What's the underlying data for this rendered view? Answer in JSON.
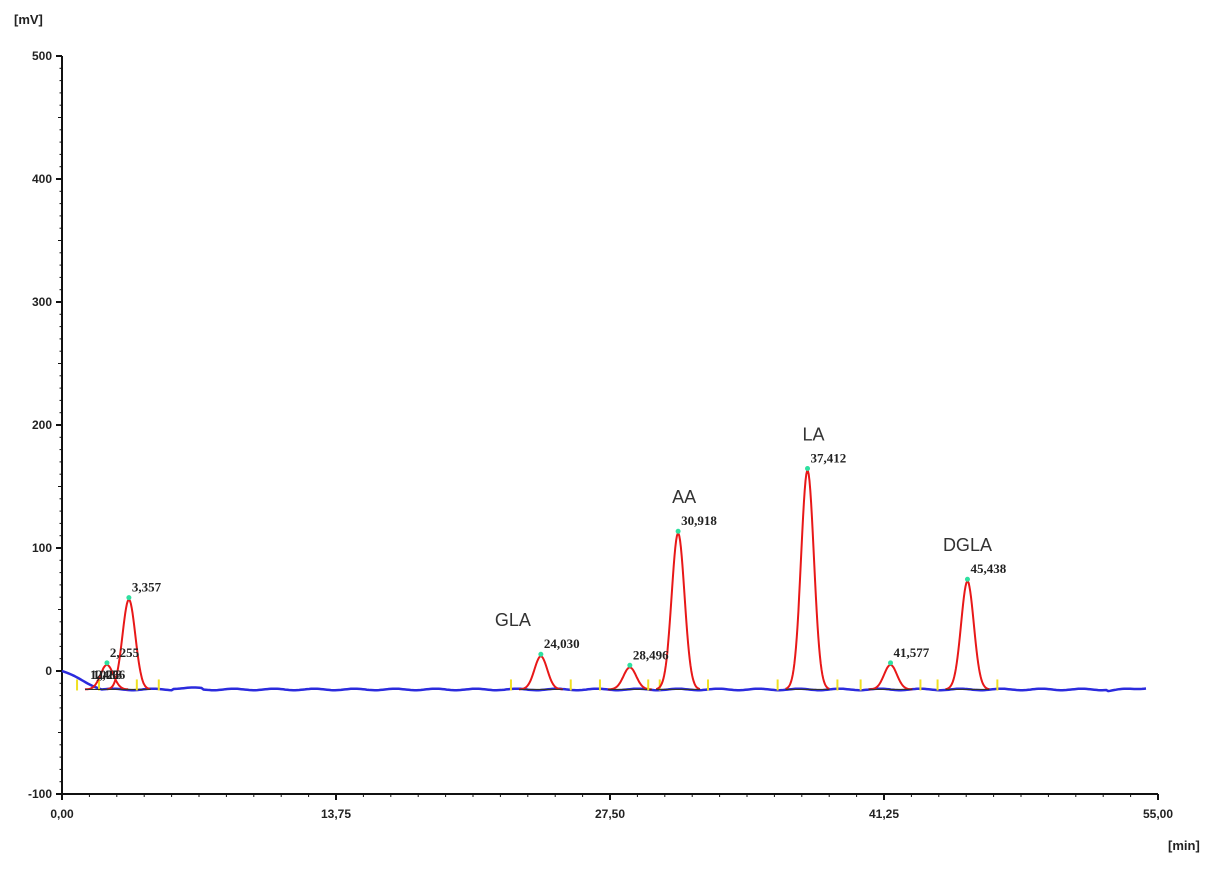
{
  "chart_data": {
    "type": "line",
    "ylabel": "[mV]",
    "xlabel": "[min]",
    "ylim": [
      -100,
      500
    ],
    "xlim": [
      0,
      55
    ],
    "y_ticks": [
      500,
      400,
      300,
      200,
      100,
      0,
      -100
    ],
    "y_tick_labels": [
      "500",
      "400",
      "300",
      "200",
      "100",
      "0",
      "-100"
    ],
    "x_ticks": [
      0,
      13.75,
      27.5,
      41.25,
      55
    ],
    "x_tick_labels": [
      "0,00",
      "13,75",
      "27,50",
      "41,25",
      "55,00"
    ],
    "colors": {
      "baseline": "#2b2bdd",
      "peaks": "#e81818",
      "integration_line": "#333333",
      "markers": "#f0e020",
      "apex": "#2ee0a0",
      "axis": "#111111"
    },
    "peaks": [
      {
        "rt": 3.357,
        "label": "3,357",
        "height": 58,
        "compound": ""
      },
      {
        "rt": 2.255,
        "label": "2,255",
        "height": 5,
        "compound": ""
      },
      {
        "rt": 24.03,
        "label": "24,030",
        "height": 12,
        "compound": "GLA"
      },
      {
        "rt": 28.496,
        "label": "28,496",
        "height": 3,
        "compound": ""
      },
      {
        "rt": 30.918,
        "label": "30,918",
        "height": 112,
        "compound": "AA"
      },
      {
        "rt": 37.412,
        "label": "37,412",
        "height": 163,
        "compound": "LA"
      },
      {
        "rt": 41.577,
        "label": "41,577",
        "height": 5,
        "compound": ""
      },
      {
        "rt": 45.438,
        "label": "45,438",
        "height": 73,
        "compound": "DGLA"
      }
    ],
    "small_labels": [
      "1,025",
      "1,483",
      "2,006"
    ]
  }
}
